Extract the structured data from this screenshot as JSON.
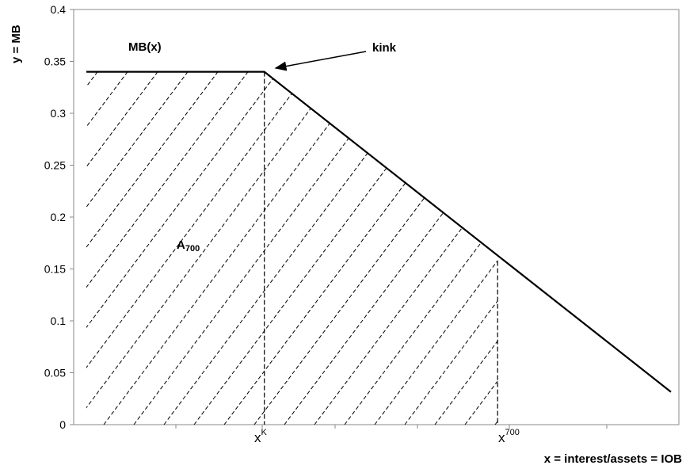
{
  "chart_data": {
    "type": "line",
    "title": "",
    "xlabel": "x = interest/assets = IOB",
    "ylabel": "y = MB",
    "ylim": [
      0,
      0.4
    ],
    "yticks": [
      "0",
      "0.05",
      "0.1",
      "0.15",
      "0.2",
      "0.25",
      "0.3",
      "0.35",
      "0.4"
    ],
    "grid": false,
    "legend": "none",
    "series": [
      {
        "name": "MB(x)",
        "points": [
          [
            0.0,
            0.34
          ],
          [
            0.3045,
            0.34
          ],
          [
            1.0,
            0.0315
          ]
        ]
      }
    ],
    "x_markers": [
      {
        "base": "x",
        "sup": "K",
        "x": 0.3045,
        "y_top": 0.34
      },
      {
        "base": "x",
        "sup": "700",
        "x": 0.7035,
        "y_top": 0.1575
      }
    ],
    "annotations": {
      "curve_label": "MB(x)",
      "kink_label": "kink",
      "area_label_base": "A",
      "area_label_sub": "700"
    },
    "hatch_region": {
      "x_from": 0.0,
      "x_to": 0.7035
    },
    "colors": {
      "line": "#000000",
      "hatch": "#000000"
    }
  }
}
